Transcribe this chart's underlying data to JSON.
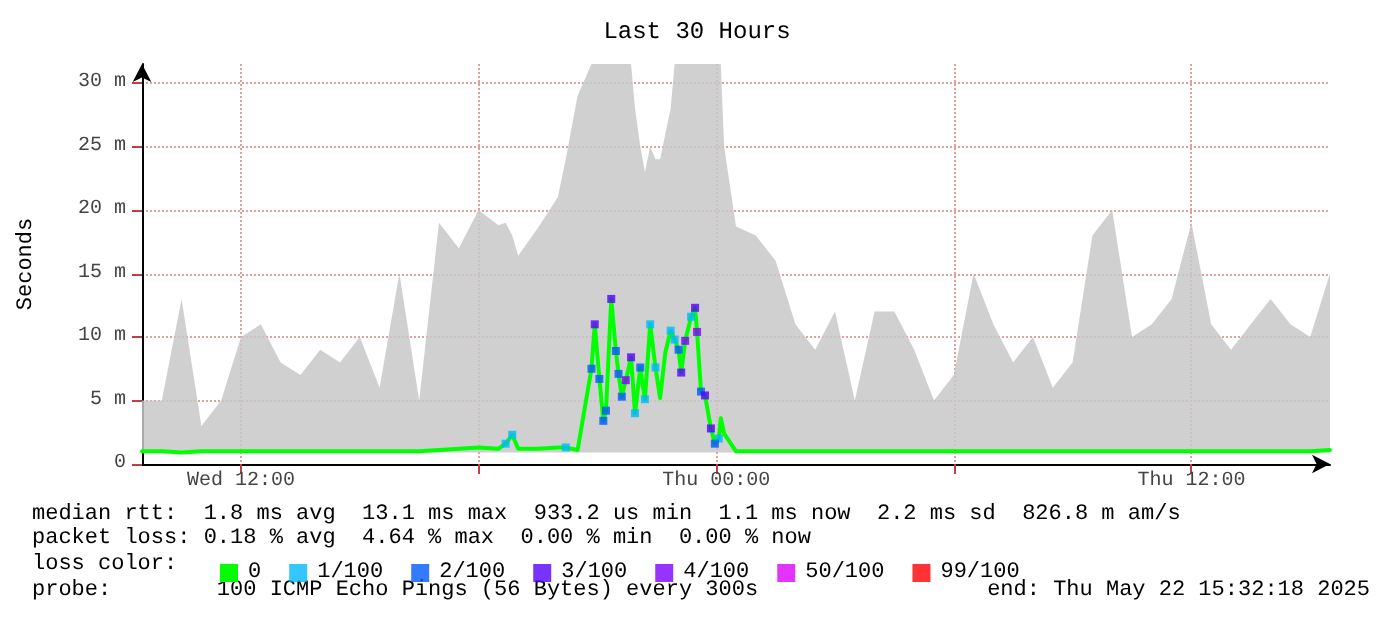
{
  "chart_data": {
    "type": "line",
    "title": "Last 30 Hours",
    "ylabel": "Seconds",
    "legend_title": "loss color:",
    "annotations": [
      "median rtt:  1.8 ms avg  13.1 ms max  933.2 us min  1.1 ms now  2.2 ms sd  826.8 m am/s",
      "packet loss: 0.18 % avg  4.64 % max  0.00 % min  0.00 % now",
      "probe:        100 ICMP Echo Pings (56 Bytes) every 300s",
      "end: Thu May 22 15:32:18 2025"
    ],
    "xlim": [
      "2025-05-21T09:30",
      "2025-05-22T15:30"
    ],
    "xticks": [
      {
        "value": "2025-05-21T12:00",
        "label": "Wed 12:00"
      },
      {
        "value": "2025-05-21T18:00",
        "label": null
      },
      {
        "value": "2025-05-22T00:00",
        "label": "Thu 00:00"
      },
      {
        "value": "2025-05-22T06:00",
        "label": null
      },
      {
        "value": "2025-05-22T12:00",
        "label": "Thu 12:00"
      }
    ],
    "ylim": [
      0,
      31.5
    ],
    "yticks": [
      0,
      {
        "value": 5,
        "label": "5 m"
      },
      {
        "value": 10,
        "label": "10 m"
      },
      {
        "value": 15,
        "label": "15 m"
      },
      {
        "value": 20,
        "label": "20 m"
      },
      {
        "value": 25,
        "label": "25 m"
      },
      {
        "value": 30,
        "label": "30 m"
      }
    ],
    "grid": true,
    "legend": "bottom",
    "line_style": "solid",
    "series": [
      {
        "name": "0",
        "color": "#00ff00",
        "marker": "none",
        "x": [
          "2025-05-21T09:30",
          "2025-05-21T10:00",
          "2025-05-21T10:30",
          "2025-05-21T11:00",
          "2025-05-21T11:30",
          "2025-05-21T12:00",
          "2025-05-21T12:30",
          "2025-05-21T13:00",
          "2025-05-21T13:30",
          "2025-05-21T14:00",
          "2025-05-21T14:30",
          "2025-05-21T15:00",
          "2025-05-21T15:30",
          "2025-05-21T16:00",
          "2025-05-21T16:30",
          "2025-05-21T17:00",
          "2025-05-21T17:30",
          "2025-05-21T18:00",
          "2025-05-21T18:30",
          "2025-05-21T18:41",
          "2025-05-21T18:51",
          "2025-05-21T19:00",
          "2025-05-21T19:30",
          "2025-05-21T20:00",
          "2025-05-21T20:12",
          "2025-05-21T20:30",
          "2025-05-21T20:51",
          "2025-05-21T20:56",
          "2025-05-21T21:03",
          "2025-05-21T21:09",
          "2025-05-21T21:13",
          "2025-05-21T21:21",
          "2025-05-21T21:28",
          "2025-05-21T21:32",
          "2025-05-21T21:37",
          "2025-05-21T21:43",
          "2025-05-21T21:51",
          "2025-05-21T21:57",
          "2025-05-21T22:05",
          "2025-05-21T22:12",
          "2025-05-21T22:20",
          "2025-05-21T22:28",
          "2025-05-21T22:35",
          "2025-05-21T22:43",
          "2025-05-21T22:51",
          "2025-05-21T22:57",
          "2025-05-21T23:03",
          "2025-05-21T23:07",
          "2025-05-21T23:13",
          "2025-05-21T23:22",
          "2025-05-21T23:28",
          "2025-05-21T23:31",
          "2025-05-21T23:37",
          "2025-05-21T23:43",
          "2025-05-21T23:52",
          "2025-05-21T23:58",
          "2025-05-22T00:04",
          "2025-05-22T00:07",
          "2025-05-22T00:12",
          "2025-05-22T00:30",
          "2025-05-22T01:00",
          "2025-05-22T01:30",
          "2025-05-22T02:00",
          "2025-05-22T02:30",
          "2025-05-22T03:00",
          "2025-05-22T03:30",
          "2025-05-22T04:00",
          "2025-05-22T04:30",
          "2025-05-22T05:00",
          "2025-05-22T05:30",
          "2025-05-22T06:00",
          "2025-05-22T06:30",
          "2025-05-22T07:00",
          "2025-05-22T07:30",
          "2025-05-22T08:00",
          "2025-05-22T08:30",
          "2025-05-22T09:00",
          "2025-05-22T09:30",
          "2025-05-22T10:00",
          "2025-05-22T10:30",
          "2025-05-22T11:00",
          "2025-05-22T11:30",
          "2025-05-22T12:00",
          "2025-05-22T12:30",
          "2025-05-22T13:00",
          "2025-05-22T13:30",
          "2025-05-22T14:00",
          "2025-05-22T14:30",
          "2025-05-22T15:00",
          "2025-05-22T15:30"
        ],
        "values": [
          1.0,
          1.0,
          0.9,
          1.0,
          1.0,
          1.0,
          1.0,
          1.0,
          1.0,
          1.0,
          1.0,
          1.0,
          1.0,
          1.0,
          1.0,
          1.1,
          1.2,
          1.3,
          1.2,
          1.6,
          2.3,
          1.2,
          1.2,
          1.3,
          1.3,
          1.1,
          7.5,
          11.0,
          6.7,
          3.4,
          4.2,
          13.0,
          8.9,
          7.1,
          5.3,
          6.6,
          8.4,
          4.0,
          7.6,
          5.1,
          11.0,
          7.6,
          5.2,
          8.8,
          10.5,
          9.8,
          9.0,
          7.2,
          9.7,
          11.6,
          12.3,
          10.4,
          5.7,
          5.4,
          2.8,
          1.6,
          2.0,
          3.6,
          2.4,
          1.0,
          1.0,
          1.0,
          1.0,
          1.0,
          1.0,
          1.0,
          1.0,
          1.0,
          1.0,
          1.0,
          1.0,
          1.0,
          1.0,
          1.0,
          1.0,
          1.0,
          1.0,
          1.0,
          1.0,
          1.0,
          1.0,
          1.0,
          1.0,
          1.0,
          1.0,
          1.0,
          1.0,
          1.0,
          1.0,
          1.1
        ],
        "lower": [
          0.9,
          0.9,
          0.9,
          0.9,
          0.9,
          0.9,
          0.9,
          0.9,
          0.9,
          0.9,
          0.9,
          0.9,
          0.9,
          0.9,
          0.9,
          0.9,
          0.9,
          0.9,
          0.9,
          0.9,
          0.9,
          0.9,
          0.9,
          0.9,
          0.9,
          0.9,
          0.9,
          0.9,
          0.9,
          0.9,
          0.9,
          0.9,
          0.9,
          0.9,
          0.9,
          0.9,
          0.9,
          0.9,
          0.9,
          0.9,
          0.9,
          0.9,
          0.9,
          0.9,
          0.9,
          0.9,
          0.9,
          0.9,
          0.9,
          0.9,
          0.9,
          0.9,
          0.9,
          0.9,
          0.9,
          0.9,
          0.9,
          0.9,
          0.9,
          0.9,
          0.9,
          0.9,
          0.9,
          0.9,
          0.9,
          0.9,
          0.9,
          0.9,
          0.9,
          0.9,
          0.9,
          0.9,
          0.9,
          0.9,
          0.9,
          0.9,
          0.9,
          0.9,
          0.9,
          0.9,
          0.9,
          0.9,
          0.9,
          0.9,
          0.9,
          0.9,
          0.9,
          0.9,
          0.9,
          0.9
        ],
        "upper": [
          5,
          5,
          13,
          3,
          5,
          10,
          11,
          8,
          7,
          9,
          8,
          10,
          6,
          15,
          5,
          19,
          17,
          20,
          18.8,
          19,
          18,
          16.4,
          18.6,
          21,
          24,
          29,
          31.5,
          31.5,
          31.5,
          31.5,
          31.5,
          31.5,
          31.5,
          31.5,
          31.5,
          31.5,
          31.5,
          28,
          25,
          23,
          25,
          24,
          24,
          26,
          28,
          31.5,
          31.5,
          31.5,
          31.5,
          31.5,
          31.5,
          31.5,
          31.5,
          31.5,
          31.5,
          31.5,
          31.5,
          31.5,
          25,
          18.7,
          18,
          16,
          11,
          9,
          12,
          5,
          12,
          12,
          9,
          5,
          7,
          15,
          11,
          8,
          10,
          6,
          8,
          18,
          20,
          10,
          11,
          13,
          19,
          11,
          9,
          11,
          13,
          11,
          10,
          15
        ]
      },
      {
        "name": "1/100",
        "type": "scatter",
        "marker": "square",
        "color": "#00b8ff",
        "x": [
          "2025-05-21T18:41",
          "2025-05-21T18:51",
          "2025-05-21T20:12",
          "2025-05-21T21:57",
          "2025-05-21T22:12",
          "2025-05-21T22:20",
          "2025-05-21T22:28",
          "2025-05-21T22:51",
          "2025-05-21T22:57",
          "2025-05-21T23:22",
          "2025-05-22T00:04"
        ],
        "values": [
          1.6,
          2.3,
          1.3,
          4.0,
          5.1,
          11.0,
          7.6,
          10.5,
          9.8,
          11.6,
          2.0
        ]
      },
      {
        "name": "2/100",
        "type": "scatter",
        "marker": "square",
        "color": "#0059ff",
        "x": [
          "2025-05-21T20:51",
          "2025-05-21T21:03",
          "2025-05-21T21:09",
          "2025-05-21T21:13",
          "2025-05-21T21:28",
          "2025-05-21T21:32",
          "2025-05-21T21:37",
          "2025-05-21T22:05",
          "2025-05-21T23:03",
          "2025-05-21T23:37",
          "2025-05-21T23:58"
        ],
        "values": [
          7.5,
          6.7,
          3.4,
          4.2,
          8.9,
          7.1,
          5.3,
          7.6,
          9.0,
          5.7,
          1.6
        ]
      },
      {
        "name": "3/100",
        "type": "scatter",
        "marker": "square",
        "color": "#5500ff",
        "x": [
          "2025-05-21T20:56",
          "2025-05-21T21:21",
          "2025-05-21T21:51",
          "2025-05-21T23:07",
          "2025-05-21T23:28",
          "2025-05-21T23:43",
          "2025-05-21T23:52"
        ],
        "values": [
          11.0,
          13.0,
          8.4,
          7.2,
          12.3,
          5.4,
          2.8
        ]
      },
      {
        "name": "4/100",
        "type": "scatter",
        "marker": "square",
        "color": "#7e00ff",
        "x": [
          "2025-05-21T21:43",
          "2025-05-21T23:13",
          "2025-05-21T23:31"
        ],
        "values": [
          6.6,
          9.7,
          10.4
        ]
      },
      {
        "name": "50/100",
        "type": "scatter",
        "color": "#dd00ff"
      },
      {
        "name": "99/100",
        "type": "scatter",
        "color": "#ff0000"
      }
    ]
  }
}
